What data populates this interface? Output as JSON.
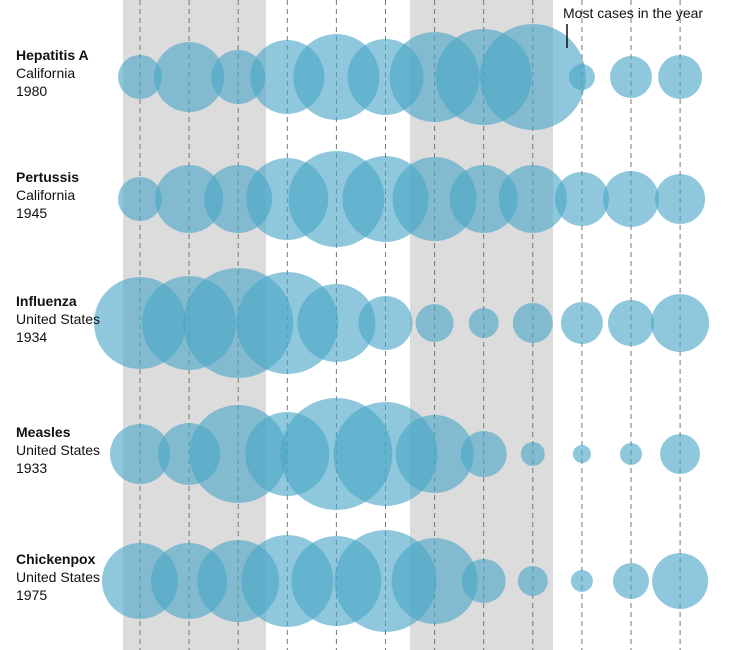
{
  "chart_data": {
    "type": "bubble",
    "annotation": "Most cases in the year",
    "categories": [
      null,
      null,
      null,
      null,
      null,
      null,
      null,
      null,
      null,
      null,
      null,
      null
    ],
    "color": "#4aa6c6",
    "series": [
      {
        "name": "Hepatitis A",
        "location": "California",
        "year": "1980",
        "values": [
          22,
          35,
          27,
          37,
          43,
          38,
          45,
          48,
          53,
          13,
          21,
          22
        ]
      },
      {
        "name": "Pertussis",
        "location": "California",
        "year": "1945",
        "values": [
          22,
          34,
          34,
          41,
          48,
          43,
          42,
          34,
          34,
          27,
          28,
          25
        ]
      },
      {
        "name": "Influenza",
        "location": "United States",
        "year": "1934",
        "values": [
          46,
          47,
          55,
          51,
          39,
          27,
          19,
          15,
          20,
          21,
          23,
          29
        ]
      },
      {
        "name": "Measles",
        "location": "United States",
        "year": "1933",
        "values": [
          30,
          31,
          49,
          42,
          56,
          52,
          39,
          23,
          12,
          9,
          11,
          20
        ]
      },
      {
        "name": "Chickenpox",
        "location": "United States",
        "year": "1975",
        "values": [
          38,
          38,
          41,
          46,
          45,
          51,
          43,
          22,
          15,
          11,
          18,
          28
        ]
      }
    ]
  }
}
